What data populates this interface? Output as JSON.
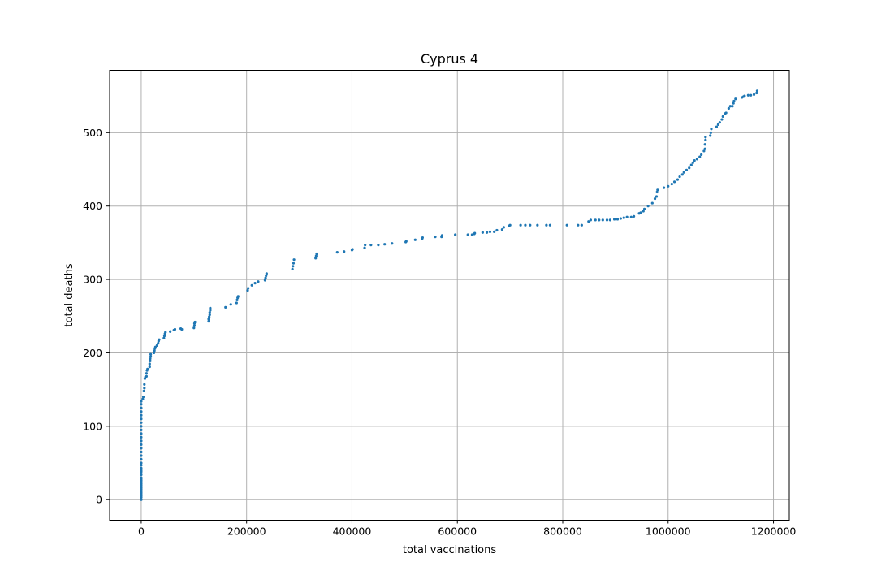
{
  "chart_data": {
    "type": "scatter",
    "title": "Cyprus 4",
    "xlabel": "total vaccinations",
    "ylabel": "total deaths",
    "xlim": [
      -60000,
      1230000
    ],
    "ylim": [
      -28,
      585
    ],
    "xticks": [
      0,
      200000,
      400000,
      600000,
      800000,
      1000000,
      1200000
    ],
    "xtick_labels": [
      "0",
      "200000",
      "400000",
      "600000",
      "800000",
      "1000000",
      "1200000"
    ],
    "yticks": [
      0,
      100,
      200,
      300,
      400,
      500
    ],
    "ytick_labels": [
      "0",
      "100",
      "200",
      "300",
      "400",
      "500"
    ],
    "grid": true,
    "marker_color": "#1f77b4",
    "series": [
      {
        "points": [
          [
            0,
            0
          ],
          [
            0,
            3
          ],
          [
            0,
            5
          ],
          [
            0,
            8
          ],
          [
            0,
            10
          ],
          [
            0,
            12
          ],
          [
            0,
            14
          ],
          [
            0,
            16
          ],
          [
            0,
            18
          ],
          [
            0,
            20
          ],
          [
            0,
            22
          ],
          [
            0,
            24
          ],
          [
            0,
            26
          ],
          [
            0,
            28
          ],
          [
            0,
            30
          ],
          [
            0,
            34
          ],
          [
            0,
            38
          ],
          [
            0,
            40
          ],
          [
            0,
            43
          ],
          [
            0,
            47
          ],
          [
            0,
            50
          ],
          [
            0,
            55
          ],
          [
            0,
            60
          ],
          [
            0,
            65
          ],
          [
            0,
            70
          ],
          [
            0,
            75
          ],
          [
            0,
            80
          ],
          [
            0,
            85
          ],
          [
            0,
            90
          ],
          [
            0,
            95
          ],
          [
            0,
            100
          ],
          [
            0,
            105
          ],
          [
            0,
            110
          ],
          [
            0,
            115
          ],
          [
            0,
            120
          ],
          [
            0,
            125
          ],
          [
            0,
            130
          ],
          [
            0,
            134
          ],
          [
            3000,
            137
          ],
          [
            4000,
            140
          ],
          [
            5000,
            148
          ],
          [
            6000,
            152
          ],
          [
            6000,
            157
          ],
          [
            7000,
            165
          ],
          [
            8000,
            167
          ],
          [
            10000,
            168
          ],
          [
            10000,
            172
          ],
          [
            11000,
            176
          ],
          [
            12000,
            178
          ],
          [
            16000,
            181
          ],
          [
            16000,
            185
          ],
          [
            17000,
            189
          ],
          [
            17000,
            192
          ],
          [
            18000,
            195
          ],
          [
            18000,
            198
          ],
          [
            24000,
            200
          ],
          [
            25000,
            203
          ],
          [
            26000,
            206
          ],
          [
            27000,
            208
          ],
          [
            30000,
            210
          ],
          [
            32000,
            213
          ],
          [
            33000,
            216
          ],
          [
            34000,
            218
          ],
          [
            43000,
            220
          ],
          [
            44000,
            223
          ],
          [
            45000,
            226
          ],
          [
            46000,
            228
          ],
          [
            55000,
            229
          ],
          [
            62000,
            231
          ],
          [
            64000,
            232
          ],
          [
            75000,
            233
          ],
          [
            77000,
            232
          ],
          [
            100000,
            234
          ],
          [
            101000,
            237
          ],
          [
            101000,
            240
          ],
          [
            102000,
            242
          ],
          [
            128000,
            243
          ],
          [
            128000,
            246
          ],
          [
            129000,
            249
          ],
          [
            130000,
            252
          ],
          [
            130000,
            255
          ],
          [
            131000,
            258
          ],
          [
            131000,
            261
          ],
          [
            160000,
            262
          ],
          [
            170000,
            266
          ],
          [
            181000,
            268
          ],
          [
            182000,
            272
          ],
          [
            183000,
            275
          ],
          [
            184000,
            277
          ],
          [
            202000,
            285
          ],
          [
            203000,
            288
          ],
          [
            210000,
            292
          ],
          [
            216000,
            295
          ],
          [
            222000,
            297
          ],
          [
            235000,
            299
          ],
          [
            236000,
            302
          ],
          [
            237000,
            305
          ],
          [
            238000,
            308
          ],
          [
            287000,
            314
          ],
          [
            288000,
            318
          ],
          [
            289000,
            322
          ],
          [
            290000,
            327
          ],
          [
            331000,
            329
          ],
          [
            332000,
            332
          ],
          [
            333000,
            335
          ],
          [
            372000,
            337
          ],
          [
            385000,
            338
          ],
          [
            400000,
            340
          ],
          [
            401000,
            341
          ],
          [
            424000,
            343
          ],
          [
            425000,
            347
          ],
          [
            436000,
            347
          ],
          [
            450000,
            347
          ],
          [
            462000,
            348
          ],
          [
            476000,
            349
          ],
          [
            502000,
            351
          ],
          [
            503000,
            352
          ],
          [
            520000,
            354
          ],
          [
            533000,
            355
          ],
          [
            534000,
            357
          ],
          [
            558000,
            358
          ],
          [
            570000,
            358
          ],
          [
            571000,
            360
          ],
          [
            596000,
            361
          ],
          [
            620000,
            361
          ],
          [
            628000,
            361
          ],
          [
            632000,
            362
          ],
          [
            633000,
            363
          ],
          [
            648000,
            364
          ],
          [
            656000,
            364
          ],
          [
            662000,
            365
          ],
          [
            670000,
            365
          ],
          [
            675000,
            367
          ],
          [
            685000,
            368
          ],
          [
            688000,
            371
          ],
          [
            698000,
            373
          ],
          [
            700000,
            374
          ],
          [
            720000,
            374
          ],
          [
            729000,
            374
          ],
          [
            738000,
            374
          ],
          [
            752000,
            374
          ],
          [
            769000,
            374
          ],
          [
            776000,
            374
          ],
          [
            808000,
            374
          ],
          [
            829000,
            374
          ],
          [
            836000,
            374
          ],
          [
            849000,
            379
          ],
          [
            853000,
            381
          ],
          [
            862000,
            381
          ],
          [
            869000,
            381
          ],
          [
            876000,
            381
          ],
          [
            884000,
            381
          ],
          [
            890000,
            381
          ],
          [
            898000,
            382
          ],
          [
            904000,
            382
          ],
          [
            910000,
            383
          ],
          [
            916000,
            384
          ],
          [
            922000,
            385
          ],
          [
            930000,
            385
          ],
          [
            935000,
            386
          ],
          [
            945000,
            390
          ],
          [
            948000,
            391
          ],
          [
            953000,
            393
          ],
          [
            955000,
            396
          ],
          [
            962000,
            400
          ],
          [
            970000,
            404
          ],
          [
            975000,
            410
          ],
          [
            978000,
            413
          ],
          [
            979000,
            419
          ],
          [
            980000,
            422
          ],
          [
            992000,
            425
          ],
          [
            1000000,
            427
          ],
          [
            1007000,
            430
          ],
          [
            1012000,
            433
          ],
          [
            1018000,
            436
          ],
          [
            1022000,
            440
          ],
          [
            1027000,
            443
          ],
          [
            1030000,
            446
          ],
          [
            1035000,
            449
          ],
          [
            1040000,
            452
          ],
          [
            1044000,
            456
          ],
          [
            1047000,
            459
          ],
          [
            1050000,
            462
          ],
          [
            1055000,
            464
          ],
          [
            1060000,
            467
          ],
          [
            1063000,
            470
          ],
          [
            1068000,
            475
          ],
          [
            1070000,
            478
          ],
          [
            1070000,
            484
          ],
          [
            1071000,
            490
          ],
          [
            1071000,
            494
          ],
          [
            1080000,
            496
          ],
          [
            1081000,
            500
          ],
          [
            1082000,
            505
          ],
          [
            1092000,
            508
          ],
          [
            1095000,
            511
          ],
          [
            1098000,
            514
          ],
          [
            1102000,
            518
          ],
          [
            1104000,
            522
          ],
          [
            1108000,
            526
          ],
          [
            1110000,
            527
          ],
          [
            1115000,
            533
          ],
          [
            1118000,
            536
          ],
          [
            1122000,
            536
          ],
          [
            1124000,
            540
          ],
          [
            1125000,
            543
          ],
          [
            1128000,
            546
          ],
          [
            1140000,
            548
          ],
          [
            1143000,
            549
          ],
          [
            1145000,
            550
          ],
          [
            1152000,
            551
          ],
          [
            1157000,
            551
          ],
          [
            1163000,
            552
          ],
          [
            1168000,
            554
          ],
          [
            1169000,
            557
          ]
        ]
      }
    ]
  }
}
